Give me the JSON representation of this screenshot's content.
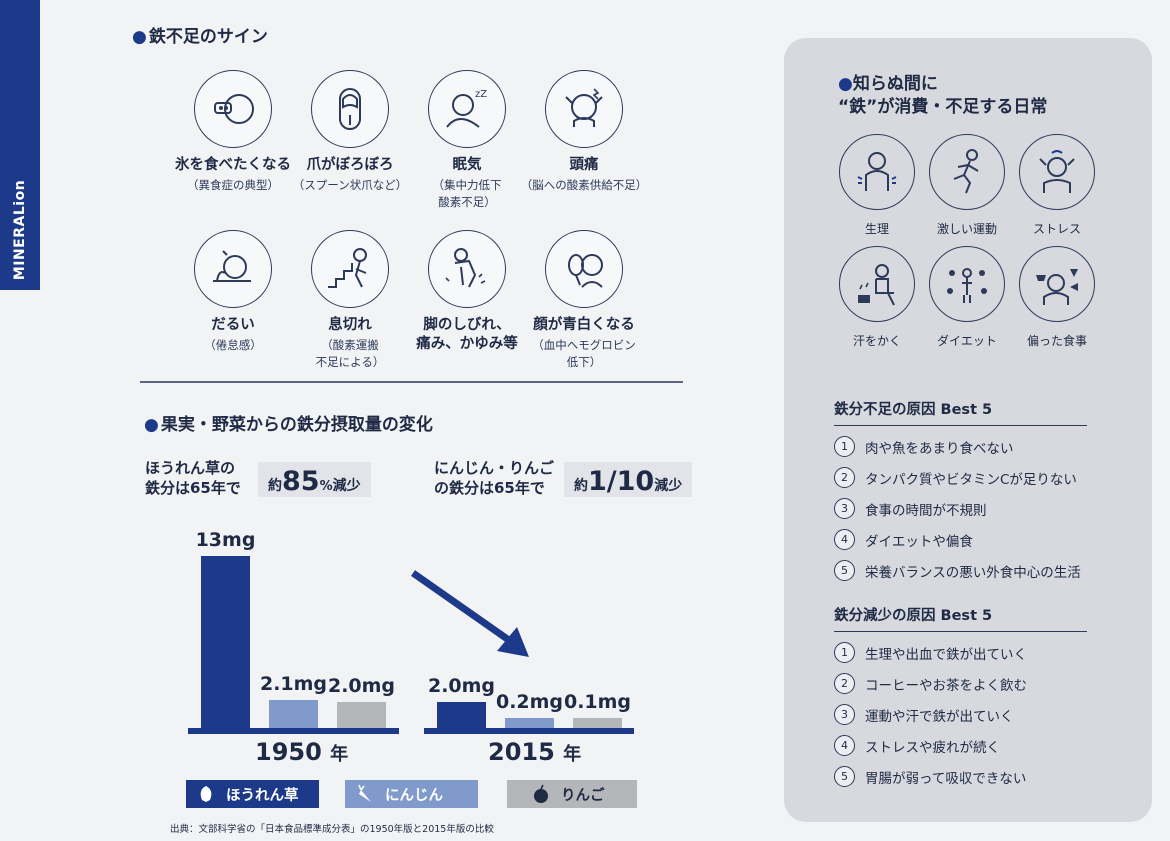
{
  "brand": {
    "name": "MINERALion"
  },
  "signs": {
    "title": "鉄不足のサイン",
    "items": [
      {
        "icon": "ice-eating-icon",
        "label": "氷を食べたくなる",
        "sub1": "（異食症の典型）",
        "sub2": ""
      },
      {
        "icon": "spoon-nail-icon",
        "label": "爪がぼろぼろ",
        "sub1": "（スプーン状爪など）",
        "sub2": ""
      },
      {
        "icon": "sleepy-icon",
        "label": "眠気",
        "sub1": "（集中力低下",
        "sub2": "酸素不足）"
      },
      {
        "icon": "headache-icon",
        "label": "頭痛",
        "sub1": "（脳への酸素供給不足）",
        "sub2": ""
      },
      {
        "icon": "fatigue-icon",
        "label": "だるい",
        "sub1": "（倦怠感）",
        "sub2": ""
      },
      {
        "icon": "breathless-icon",
        "label": "息切れ",
        "sub1": "（酸素運搬",
        "sub2": "不足による）"
      },
      {
        "icon": "leg-numb-icon",
        "label": "脚のしびれ、",
        "label2": "痛み、かゆみ等",
        "sub1": "",
        "sub2": ""
      },
      {
        "icon": "pale-face-icon",
        "label": "顔が青白くなる",
        "sub1": "（血中ヘモグロビン",
        "sub2": "低下）"
      }
    ]
  },
  "intake": {
    "title": "果実・野菜からの鉄分摂取量の変化",
    "fact1": {
      "line1": "ほうれん草の",
      "line2": "鉄分は65年で",
      "pre": "約",
      "big": "85",
      "unit": "%",
      "post": "減少"
    },
    "fact2": {
      "line1": "にんじん・りんご",
      "line2": "の鉄分は65年で",
      "pre": "約",
      "big": "1/10",
      "post": "減少"
    },
    "year1": {
      "value": "1950",
      "unit": "年"
    },
    "year2": {
      "value": "2015",
      "unit": "年"
    },
    "legend": {
      "spinach": "ほうれん草",
      "carrot": "にんじん",
      "apple": "りんご"
    },
    "source": "出典：文部科学省の「日本食品標準成分表」の1950年版と2015年版の比較"
  },
  "chart_data": {
    "type": "bar",
    "categories": [
      "1950 年",
      "2015 年"
    ],
    "series": [
      {
        "name": "ほうれん草",
        "values": [
          13,
          2.0
        ],
        "labels": [
          "13mg",
          "2.0mg"
        ],
        "color": "#1d3a8a"
      },
      {
        "name": "にんじん",
        "values": [
          2.1,
          0.2
        ],
        "labels": [
          "2.1mg",
          "0.2mg"
        ],
        "color": "#7f9acb"
      },
      {
        "name": "りんご",
        "values": [
          2.0,
          0.1
        ],
        "labels": [
          "2.0mg",
          "0.1mg"
        ],
        "color": "#b5b6b9"
      }
    ],
    "ylim": [
      0,
      13
    ]
  },
  "daily": {
    "title_line1": "知らぬ間に",
    "title_line2": "“鉄”が消費・不足する日常",
    "items": [
      {
        "icon": "period-icon",
        "label": "生理"
      },
      {
        "icon": "exercise-icon",
        "label": "激しい運動"
      },
      {
        "icon": "stress-icon",
        "label": "ストレス"
      },
      {
        "icon": "sweat-icon",
        "label": "汗をかく"
      },
      {
        "icon": "diet-icon",
        "label": "ダイエット"
      },
      {
        "icon": "unbalanced-meal-icon",
        "label": "偏った食事"
      }
    ]
  },
  "deficiency_causes": {
    "title": "鉄分不足の原因 Best 5",
    "items": [
      {
        "num": "1",
        "text": "肉や魚をあまり食べない"
      },
      {
        "num": "2",
        "text": "タンパク質やビタミンCが足りない"
      },
      {
        "num": "3",
        "text": "食事の時間が不規則"
      },
      {
        "num": "4",
        "text": "ダイエットや偏食"
      },
      {
        "num": "5",
        "text": "栄養バランスの悪い外食中心の生活"
      }
    ]
  },
  "decrease_causes": {
    "title": "鉄分減少の原因 Best 5",
    "items": [
      {
        "num": "1",
        "text": "生理や出血で鉄が出ていく"
      },
      {
        "num": "2",
        "text": "コーヒーやお茶をよく飲む"
      },
      {
        "num": "3",
        "text": "運動や汗で鉄が出ていく"
      },
      {
        "num": "4",
        "text": "ストレスや疲れが続く"
      },
      {
        "num": "5",
        "text": "胃腸が弱って吸収できない"
      }
    ]
  }
}
